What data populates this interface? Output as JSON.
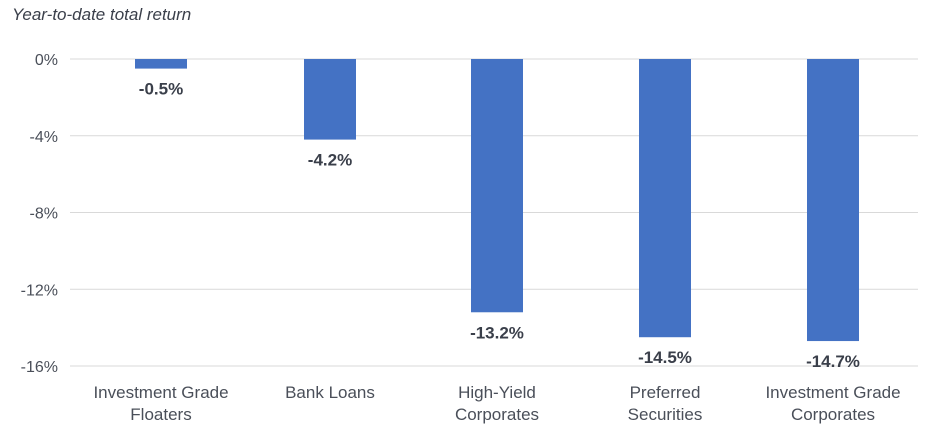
{
  "chart_data": {
    "type": "bar",
    "title": "Year-to-date total return",
    "categories": [
      [
        "Investment Grade",
        "Floaters"
      ],
      [
        "Bank Loans"
      ],
      [
        "High-Yield",
        "Corporates"
      ],
      [
        "Preferred",
        "Securities"
      ],
      [
        "Investment Grade",
        "Corporates"
      ]
    ],
    "values": [
      -0.5,
      -4.2,
      -13.2,
      -14.5,
      -14.7
    ],
    "data_labels": [
      "-0.5%",
      "-4.2%",
      "-13.2%",
      "-14.5%",
      "-14.7%"
    ],
    "ylim": [
      -16,
      0
    ],
    "yticks": [
      0,
      -4,
      -8,
      -12,
      -16
    ],
    "ytick_labels": [
      "0%",
      "-4%",
      "-8%",
      "-12%",
      "-16%"
    ],
    "grid": true,
    "bar_color": "#4472C4",
    "grid_color": "#d9d9d9"
  }
}
